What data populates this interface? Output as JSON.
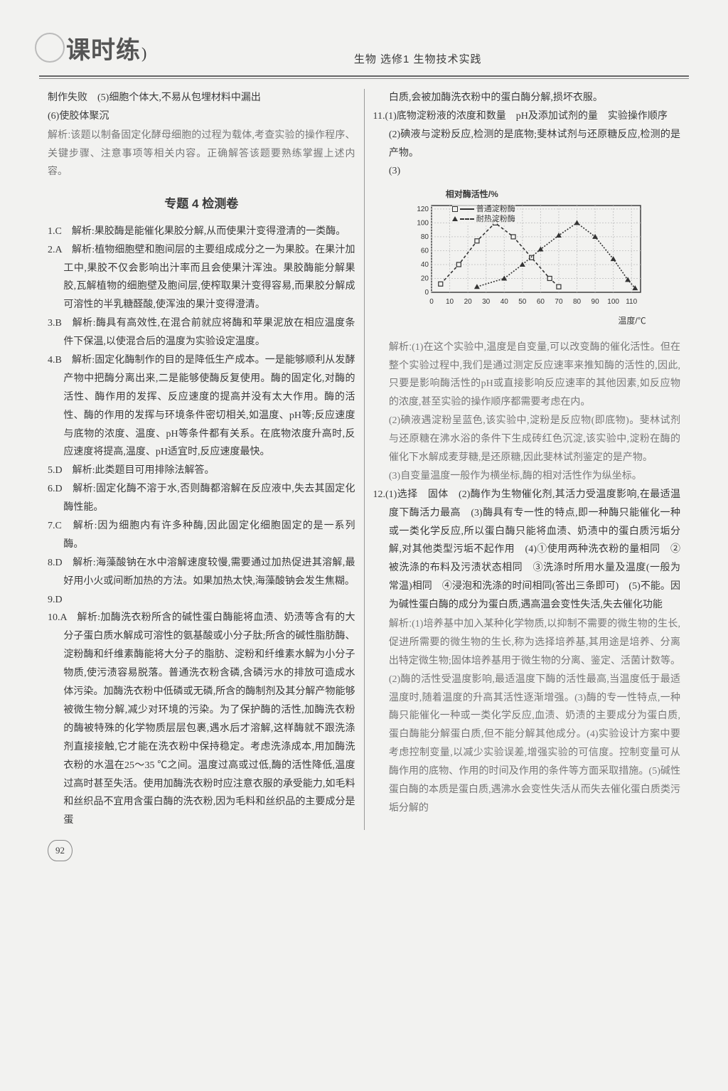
{
  "header": {
    "logo_pre": "课",
    "logo_mid": "时",
    "logo_post": "练",
    "title": "生物 选修1 生物技术实践"
  },
  "left": {
    "prev_tail1": "制作失败　(5)细胞个体大,不易从包埋材料中漏出",
    "prev_tail2": "(6)使胶体聚沉",
    "prev_explain_label": "解析:",
    "prev_explain": "该题以制备固定化酵母细胞的过程为载体,考查实验的操作程序、关键步骤、注意事项等相关内容。正确解答该题要熟练掌握上述内容。",
    "section_title": "专题 4 检测卷",
    "q1": "1.C　解析:果胶酶是能催化果胶分解,从而使果汁变得澄清的一类酶。",
    "q2": "2.A　解析:植物细胞壁和胞间层的主要组成成分之一为果胶。在果汁加工中,果胶不仅会影响出汁率而且会使果汁浑浊。果胶酶能分解果胶,瓦解植物的细胞壁及胞间层,使榨取果汁变得容易,而果胶分解成可溶性的半乳糖醛酸,使浑浊的果汁变得澄清。",
    "q3": "3.B　解析:酶具有高效性,在混合前就应将酶和苹果泥放在相应温度条件下保温,以使混合后的温度为实验设定温度。",
    "q4": "4.B　解析:固定化酶制作的目的是降低生产成本。一是能够顺利从发酵产物中把酶分离出来,二是能够使酶反复使用。酶的固定化,对酶的活性、酶作用的发挥、反应速度的提高并没有太大作用。酶的活性、酶的作用的发挥与环境条件密切相关,如温度、pH等;反应速度与底物的浓度、温度、pH等条件都有关系。在底物浓度升高时,反应速度将提高,温度、pH适宜时,反应速度最快。",
    "q5": "5.D　解析:此类题目可用排除法解答。",
    "q6": "6.D　解析:固定化酶不溶于水,否则酶都溶解在反应液中,失去其固定化酶性能。",
    "q7": "7.C　解析:因为细胞内有许多种酶,因此固定化细胞固定的是一系列酶。",
    "q8": "8.D　解析:海藻酸钠在水中溶解速度较慢,需要通过加热促进其溶解,最好用小火或间断加热的方法。如果加热太快,海藻酸钠会发生焦糊。",
    "q9": "9.D",
    "q10": "10.A　解析:加酶洗衣粉所含的碱性蛋白酶能将血渍、奶渍等含有的大分子蛋白质水解成可溶性的氨基酸或小分子肽;所含的碱性脂肪酶、淀粉酶和纤维素酶能将大分子的脂肪、淀粉和纤维素水解为小分子物质,使污渍容易脱落。普通洗衣粉含磷,含磷污水的排放可造成水体污染。加酶洗衣粉中低磷或无磷,所含的酶制剂及其分解产物能够被微生物分解,减少对环境的污染。为了保护酶的活性,加酶洗衣粉的酶被特殊的化学物质层层包裹,遇水后才溶解,这样酶就不跟洗涤剂直接接触,它才能在洗衣粉中保持稳定。考虑洗涤成本,用加酶洗衣粉的水温在25～35 ℃之间。温度过高或过低,酶的活性降低,温度过高时甚至失活。使用加酶洗衣粉时应注意衣服的承受能力,如毛料和丝织品不宜用含蛋白酶的洗衣粉,因为毛料和丝织品的主要成分是蛋"
  },
  "right": {
    "top_cont": "白质,会被加酶洗衣粉中的蛋白酶分解,损坏衣服。",
    "q11_line1": "11.(1)底物淀粉液的浓度和数量　pH及添加试剂的量　实验操作顺序",
    "q11_line2": "(2)碘液与淀粉反应,检测的是底物;斐林试剂与还原糖反应,检测的是产物。",
    "q11_line3": "(3)",
    "chart": {
      "type": "line",
      "ylabel": "相对酶活性/%",
      "xlabel": "温度/℃",
      "x_ticks": [
        0,
        10,
        20,
        30,
        40,
        50,
        60,
        70,
        80,
        90,
        100,
        110
      ],
      "y_ticks": [
        20,
        40,
        60,
        80,
        100,
        120
      ],
      "xlim": [
        0,
        115
      ],
      "ylim": [
        0,
        125
      ],
      "grid_color": "#c8c8c8",
      "axis_color": "#333333",
      "tick_fontsize": 10,
      "label_fontsize": 12,
      "series": [
        {
          "name": "普通淀粉酶",
          "marker": "square",
          "dash": "4 3",
          "color": "#333333",
          "points": [
            [
              5,
              12
            ],
            [
              15,
              40
            ],
            [
              25,
              74
            ],
            [
              35,
              100
            ],
            [
              45,
              80
            ],
            [
              55,
              50
            ],
            [
              65,
              20
            ],
            [
              70,
              8
            ]
          ]
        },
        {
          "name": "耐热淀粉酶",
          "marker": "triangle",
          "dash": "2 2",
          "color": "#333333",
          "points": [
            [
              25,
              8
            ],
            [
              40,
              20
            ],
            [
              50,
              40
            ],
            [
              60,
              62
            ],
            [
              70,
              82
            ],
            [
              80,
              100
            ],
            [
              90,
              80
            ],
            [
              100,
              48
            ],
            [
              108,
              18
            ],
            [
              112,
              6
            ]
          ]
        }
      ]
    },
    "q11_expl_label": "解析:",
    "q11_expl1": "(1)在这个实验中,温度是自变量,可以改变酶的催化活性。但在整个实验过程中,我们是通过测定反应速率来推知酶的活性的,因此,只要是影响酶活性的pH或直接影响反应速率的其他因素,如反应物的浓度,甚至实验的操作顺序都需要考虑在内。",
    "q11_expl2": "(2)碘液遇淀粉呈蓝色,该实验中,淀粉是反应物(即底物)。斐林试剂与还原糖在沸水浴的条件下生成砖红色沉淀,该实验中,淀粉在酶的催化下水解成麦芽糖,是还原糖,因此斐林试剂鉴定的是产物。",
    "q11_expl3": "(3)自变量温度一般作为横坐标,酶的相对活性作为纵坐标。",
    "q12": "12.(1)选择　固体　(2)酶作为生物催化剂,其活力受温度影响,在最适温度下酶活力最高　(3)酶具有专一性的特点,即一种酶只能催化一种或一类化学反应,所以蛋白酶只能将血渍、奶渍中的蛋白质污垢分解,对其他类型污垢不起作用　(4)①使用两种洗衣粉的量相同　②被洗涤的布料及污渍状态相同　③洗涤时所用水量及温度(一般为常温)相同　④浸泡和洗涤的时间相同(答出三条即可)　(5)不能。因为碱性蛋白酶的成分为蛋白质,遇高温会变性失活,失去催化功能",
    "q12_expl_label": "解析:",
    "q12_expl": "(1)培养基中加入某种化学物质,以抑制不需要的微生物的生长,促进所需要的微生物的生长,称为选择培养基,其用途是培养、分离出特定微生物;固体培养基用于微生物的分离、鉴定、活菌计数等。(2)酶的活性受温度影响,最适温度下酶的活性最高,当温度低于最适温度时,随着温度的升高其活性逐渐增强。(3)酶的专一性特点,一种酶只能催化一种或一类化学反应,血渍、奶渍的主要成分为蛋白质,蛋白酶能分解蛋白质,但不能分解其他成分。(4)实验设计方案中要考虑控制变量,以减少实验误差,增强实验的可信度。控制变量可从酶作用的底物、作用的时间及作用的条件等方面采取措施。(5)碱性蛋白酶的本质是蛋白质,遇沸水会变性失活从而失去催化蛋白质类污垢分解的"
  },
  "page_number": "92"
}
